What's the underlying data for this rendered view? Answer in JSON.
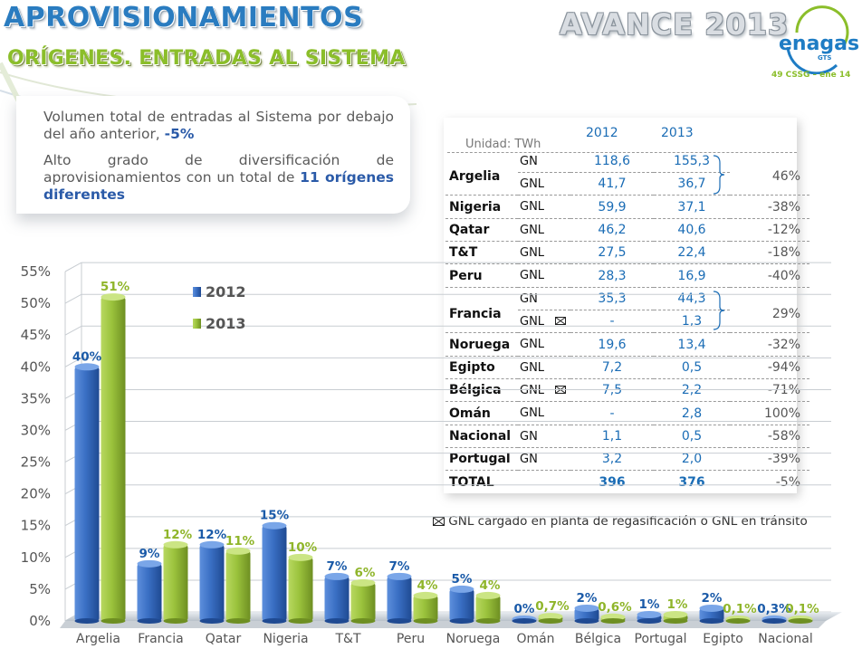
{
  "header": {
    "title": "APROVISIONAMIENTOS",
    "subtitle": "ORÍGENES. ENTRADAS AL SISTEMA",
    "avance": "AVANCE 2013",
    "logo": "enagas",
    "logo_sub": "GTS",
    "meeting": "49 CSSG – ene 14"
  },
  "summary": {
    "p1_text": "Volumen total de entradas al Sistema por debajo del año anterior, ",
    "p1_value": "-5%",
    "p2_text": "Alto grado de diversificación de aprovisionamientos con un total de ",
    "p2_value": "11 orígenes diferentes"
  },
  "table": {
    "unit": "Unidad: TWh",
    "years": [
      "2012",
      "2013"
    ],
    "rows": [
      {
        "country": "Argelia",
        "type": "GN",
        "v2012": "118,6",
        "v2013": "155,3",
        "pct": "46%"
      },
      {
        "country": "",
        "type": "GNL",
        "v2012": "41,7",
        "v2013": "36,7",
        "pct": ""
      },
      {
        "country": "Nigeria",
        "type": "GNL",
        "v2012": "59,9",
        "v2013": "37,1",
        "pct": "-38%"
      },
      {
        "country": "Qatar",
        "type": "GNL",
        "v2012": "46,2",
        "v2013": "40,6",
        "pct": "-12%"
      },
      {
        "country": "T&T",
        "type": "GNL",
        "v2012": "27,5",
        "v2013": "22,4",
        "pct": "-18%"
      },
      {
        "country": "Peru",
        "type": "GNL",
        "v2012": "28,3",
        "v2013": "16,9",
        "pct": "-40%"
      },
      {
        "country": "Francia",
        "type": "GN",
        "v2012": "35,3",
        "v2013": "44,3",
        "pct": "29%"
      },
      {
        "country": "",
        "type": "GNL",
        "v2012": "-",
        "v2013": "1,3",
        "pct": ""
      },
      {
        "country": "Noruega",
        "type": "GNL",
        "v2012": "19,6",
        "v2013": "13,4",
        "pct": "-32%"
      },
      {
        "country": "Egipto",
        "type": "GNL",
        "v2012": "7,2",
        "v2013": "0,5",
        "pct": "-94%"
      },
      {
        "country": "Bélgica",
        "type": "GNL",
        "v2012": "7,5",
        "v2013": "2,2",
        "pct": "-71%"
      },
      {
        "country": "Omán",
        "type": "GNL",
        "v2012": "-",
        "v2013": "2,8",
        "pct": "100%"
      },
      {
        "country": "Nacional",
        "type": "GN",
        "v2012": "1,1",
        "v2013": "0,5",
        "pct": "-58%"
      },
      {
        "country": "Portugal",
        "type": "GN",
        "v2012": "3,2",
        "v2013": "2,0",
        "pct": "-39%"
      },
      {
        "country": "TOTAL",
        "type": "",
        "v2012": "396",
        "v2013": "376",
        "pct": "-5%"
      }
    ],
    "footnote": "GNL cargado en planta de regasificación o GNL en tránsito"
  },
  "chart_data": {
    "type": "bar",
    "categories": [
      "Argelia",
      "Francia",
      "Qatar",
      "Nigeria",
      "T&T",
      "Peru",
      "Noruega",
      "Omán",
      "Bélgica",
      "Portugal",
      "Egipto",
      "Nacional"
    ],
    "series": [
      {
        "name": "2012",
        "values": [
          40,
          9,
          12,
          15,
          7,
          7,
          5,
          0,
          2,
          1,
          2,
          0.3
        ],
        "labels": [
          "40%",
          "9%",
          "12%",
          "15%",
          "7%",
          "7%",
          "5%",
          "0%",
          "2%",
          "1%",
          "2%",
          "0,3%"
        ],
        "color": "#3a6fc4"
      },
      {
        "name": "2013",
        "values": [
          51,
          12,
          11,
          10,
          6,
          4,
          4,
          0.7,
          0.6,
          1,
          0.1,
          0.1
        ],
        "labels": [
          "51%",
          "12%",
          "11%",
          "10%",
          "6%",
          "4%",
          "4%",
          "0,7%",
          "0,6%",
          "1%",
          "0,1%",
          "0,1%"
        ],
        "color": "#9ac23c"
      }
    ],
    "yticks": [
      "0%",
      "5%",
      "10%",
      "15%",
      "20%",
      "25%",
      "30%",
      "35%",
      "40%",
      "45%",
      "50%",
      "55%"
    ],
    "ylim": [
      0,
      55
    ],
    "grid": true,
    "legend_position": "top-left"
  }
}
